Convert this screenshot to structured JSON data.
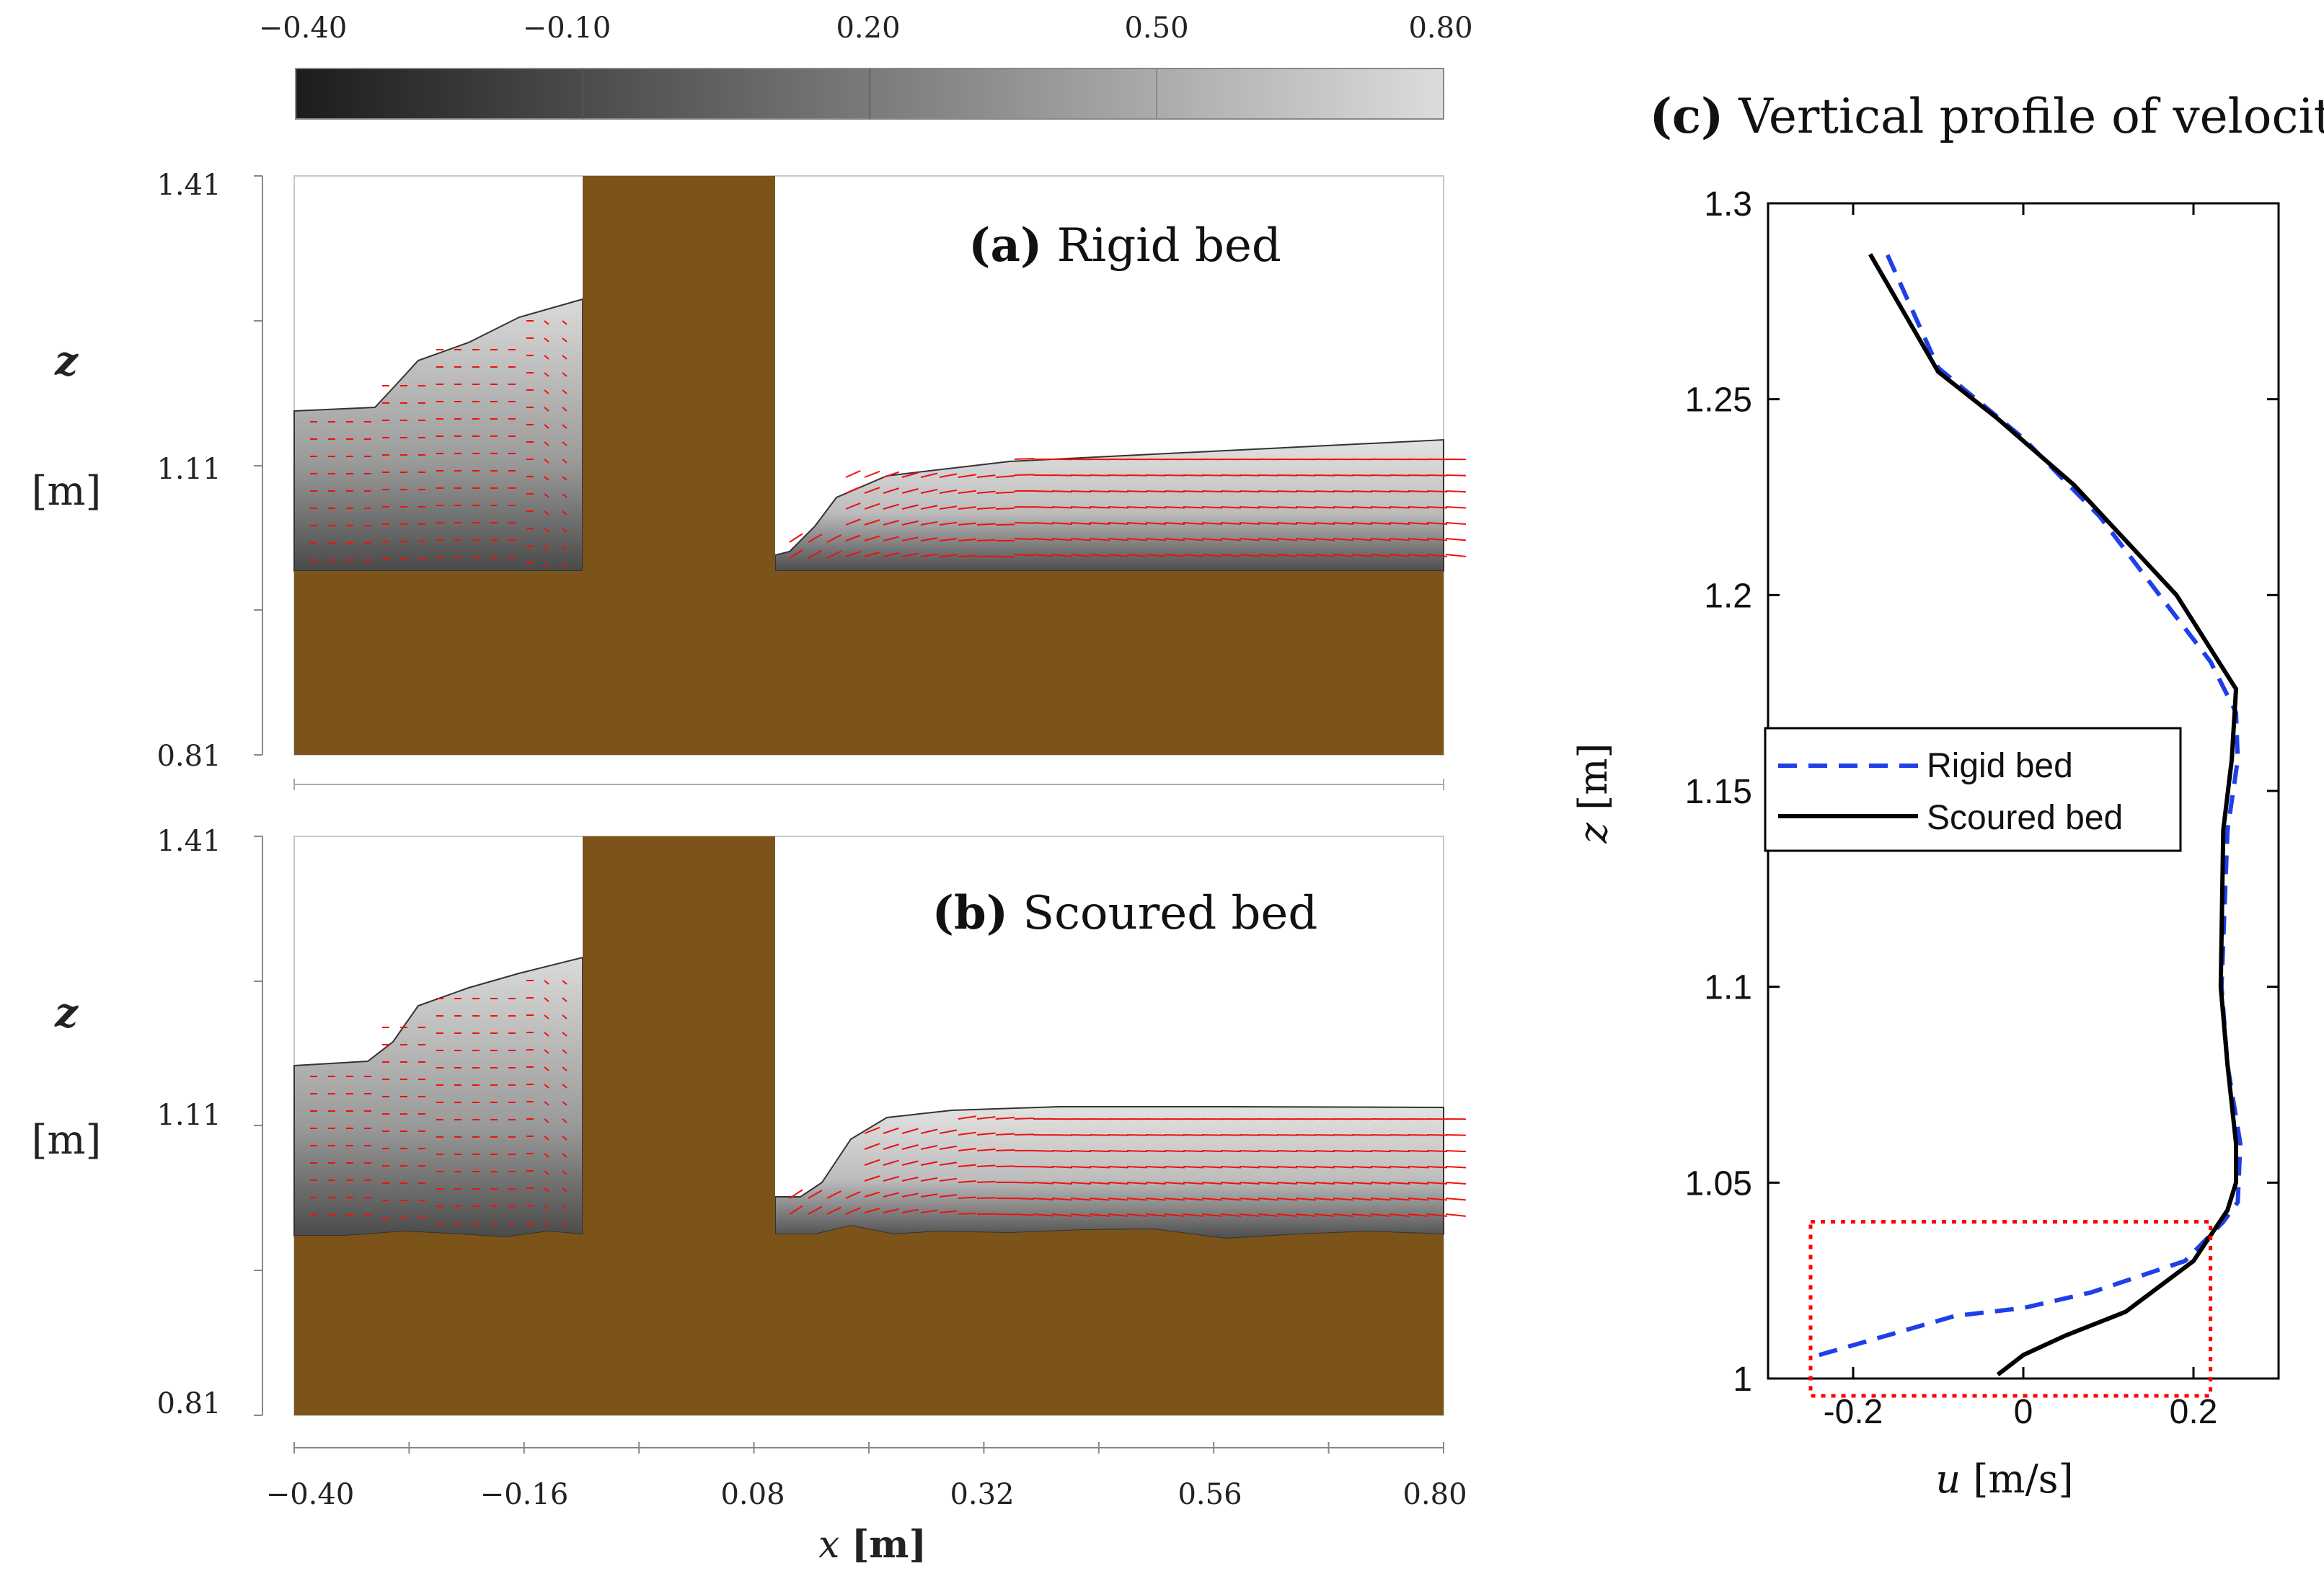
{
  "colorbar": {
    "ticks": [
      "−0.40",
      "−0.10",
      "0.20",
      "0.50",
      "0.80"
    ],
    "min": -0.4,
    "max": 0.8
  },
  "panel_a": {
    "label_bold": "(a)",
    "label_text": "Rigid bed",
    "z_label": "z",
    "z_unit": "[m]",
    "z_ticks": [
      "1.41",
      "1.11",
      "0.81"
    ]
  },
  "panel_b": {
    "label_bold": "(b)",
    "label_text": "Scoured bed",
    "z_label": "z",
    "z_unit": "[m]",
    "z_ticks": [
      "1.41",
      "1.11",
      "0.81"
    ]
  },
  "x_axis": {
    "label_var": "x",
    "label_unit": "[m]",
    "ticks": [
      "−0.40",
      "−0.16",
      "0.08",
      "0.32",
      "0.56",
      "0.80"
    ]
  },
  "panel_c": {
    "title_bold": "(c)",
    "title_text": "Vertical profile of velocity",
    "ylabel_var": "z",
    "ylabel_unit": "[m]",
    "xlabel_var": "u",
    "xlabel_unit": "[m/s]",
    "legend": [
      "Rigid bed",
      "Scoured bed"
    ]
  },
  "colors": {
    "bed": "#7c5419",
    "vector": "#ee1111",
    "rigid": "#1f3fe8",
    "scoured": "#000000",
    "box": "#ff0000"
  },
  "chart_data": [
    {
      "type": "line",
      "title": "Vertical profile of velocity",
      "xlabel": "u [m/s]",
      "ylabel": "z [m]",
      "xlim": [
        -0.3,
        0.3
      ],
      "ylim": [
        1.0,
        1.3
      ],
      "xticks": [
        -0.2,
        0,
        0.2
      ],
      "yticks": [
        1,
        1.05,
        1.1,
        1.15,
        1.2,
        1.25,
        1.3
      ],
      "legend_position": "center-left",
      "series": [
        {
          "name": "Rigid bed",
          "style": "dashed",
          "points": [
            [
              -0.24,
              1.006
            ],
            [
              -0.16,
              1.011
            ],
            [
              -0.08,
              1.016
            ],
            [
              0.0,
              1.018
            ],
            [
              0.08,
              1.022
            ],
            [
              0.19,
              1.03
            ],
            [
              0.235,
              1.04
            ],
            [
              0.252,
              1.045
            ],
            [
              0.255,
              1.06
            ],
            [
              0.24,
              1.08
            ],
            [
              0.233,
              1.1
            ],
            [
              0.24,
              1.14
            ],
            [
              0.252,
              1.158
            ],
            [
              0.25,
              1.17
            ],
            [
              0.22,
              1.183
            ],
            [
              0.16,
              1.2
            ],
            [
              0.09,
              1.22
            ],
            [
              0.0,
              1.24
            ],
            [
              -0.1,
              1.258
            ],
            [
              -0.16,
              1.287
            ]
          ]
        },
        {
          "name": "Scoured bed",
          "style": "solid",
          "points": [
            [
              -0.03,
              1.001
            ],
            [
              0.0,
              1.006
            ],
            [
              0.05,
              1.011
            ],
            [
              0.12,
              1.017
            ],
            [
              0.2,
              1.03
            ],
            [
              0.24,
              1.043
            ],
            [
              0.25,
              1.05
            ],
            [
              0.25,
              1.06
            ],
            [
              0.24,
              1.08
            ],
            [
              0.232,
              1.1
            ],
            [
              0.235,
              1.14
            ],
            [
              0.245,
              1.158
            ],
            [
              0.25,
              1.176
            ],
            [
              0.18,
              1.2
            ],
            [
              0.06,
              1.228
            ],
            [
              -0.03,
              1.245
            ],
            [
              -0.1,
              1.257
            ],
            [
              -0.18,
              1.287
            ]
          ]
        }
      ],
      "highlight_box": {
        "x": [
          -0.25,
          0.22
        ],
        "y": [
          1.0,
          1.04
        ]
      }
    },
    {
      "type": "heatmap",
      "title": "Rigid bed",
      "xlabel": "x [m]",
      "ylabel": "z [m]",
      "xlim": [
        -0.4,
        0.8
      ],
      "ylim": [
        0.81,
        1.41
      ],
      "pier_x": [
        -0.1,
        0.1
      ],
      "bed_level": 1.0,
      "water_surface_upstream": [
        [
          -0.4,
          1.16
        ],
        [
          -0.3,
          1.17
        ],
        [
          -0.26,
          1.21
        ],
        [
          -0.2,
          1.25
        ],
        [
          -0.1,
          1.28
        ]
      ],
      "water_surface_downstream": [
        [
          0.1,
          1.03
        ],
        [
          0.12,
          1.05
        ],
        [
          0.16,
          1.09
        ],
        [
          0.22,
          1.1
        ],
        [
          0.4,
          1.11
        ],
        [
          0.8,
          1.12
        ]
      ]
    },
    {
      "type": "heatmap",
      "title": "Scoured bed",
      "xlabel": "x [m]",
      "ylabel": "z [m]",
      "xlim": [
        -0.4,
        0.8
      ],
      "ylim": [
        0.81,
        1.41
      ],
      "pier_x": [
        -0.1,
        0.1
      ],
      "bed_level": 1.0,
      "water_surface_upstream": [
        [
          -0.4,
          1.17
        ],
        [
          -0.3,
          1.19
        ],
        [
          -0.26,
          1.23
        ],
        [
          -0.2,
          1.26
        ],
        [
          -0.1,
          1.28
        ]
      ],
      "water_surface_downstream": [
        [
          0.1,
          1.04
        ],
        [
          0.14,
          1.05
        ],
        [
          0.18,
          1.09
        ],
        [
          0.22,
          1.12
        ],
        [
          0.4,
          1.13
        ],
        [
          0.8,
          1.13
        ]
      ]
    }
  ]
}
